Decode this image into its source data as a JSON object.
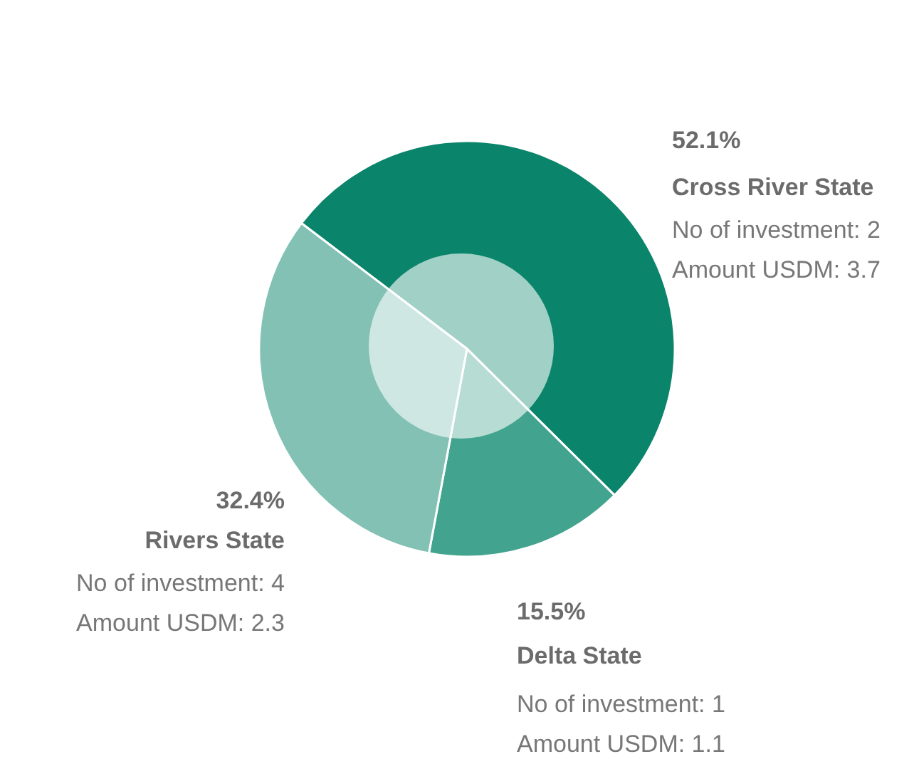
{
  "chart_data": {
    "type": "pie",
    "categories": [
      "Cross River State",
      "Delta State",
      "Rivers State"
    ],
    "values": [
      52.1,
      15.5,
      32.4
    ],
    "value_labels": [
      "52.1%",
      "15.5%",
      "32.4%"
    ],
    "colors": [
      "#0a846a",
      "#42a48f",
      "#82c1b4"
    ],
    "annotations": [
      "No of investment: 2",
      "Amount USDM: 3.7",
      "No of investment: 1",
      "Amount USDM: 1.1",
      "No of investment: 4",
      "Amount USDM: 2.3"
    ],
    "legend": false
  }
}
